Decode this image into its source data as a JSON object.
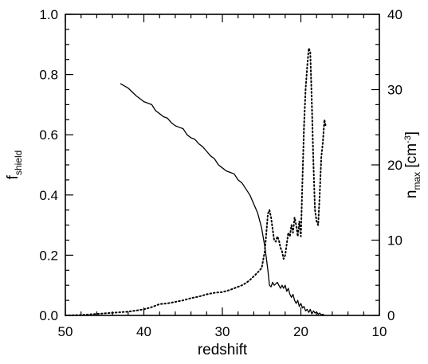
{
  "chart_data": {
    "type": "line",
    "title": "",
    "xlabel": "redshift",
    "ylabel_left": {
      "main": "f",
      "sub": "shield"
    },
    "ylabel_right": {
      "main": "n",
      "sub": "max",
      "unit_open": " [cm",
      "unit_sup": "-3",
      "unit_close": "]"
    },
    "xlim": [
      50,
      10
    ],
    "ylim_left": [
      0.0,
      1.0
    ],
    "ylim_right": [
      0,
      40
    ],
    "x_ticks": [
      50,
      40,
      30,
      20,
      10
    ],
    "x_tick_labels": [
      "50",
      "40",
      "30",
      "20",
      "10"
    ],
    "y_left_ticks": [
      0.0,
      0.2,
      0.4,
      0.6,
      0.8,
      1.0
    ],
    "y_left_tick_labels": [
      "0.0",
      "0.2",
      "0.4",
      "0.6",
      "0.8",
      "1.0"
    ],
    "y_right_ticks": [
      0,
      10,
      20,
      30,
      40
    ],
    "y_right_tick_labels": [
      "0",
      "10",
      "20",
      "30",
      "40"
    ],
    "grid": false,
    "legend": "none",
    "colors": {
      "line": "#000000"
    },
    "series": [
      {
        "axis": "left",
        "style": "solid",
        "x": [
          43.0,
          42.0,
          41.0,
          40.0,
          39.0,
          38.5,
          38.0,
          37.5,
          37.0,
          36.5,
          36.0,
          35.5,
          35.0,
          34.5,
          34.0,
          33.5,
          33.0,
          32.5,
          32.0,
          31.5,
          31.0,
          30.5,
          30.0,
          29.5,
          29.0,
          28.5,
          28.0,
          27.5,
          27.0,
          26.5,
          26.0,
          25.5,
          25.0,
          24.8,
          24.6,
          24.4,
          24.2,
          24.0,
          23.8,
          23.6,
          23.4,
          23.2,
          23.0,
          22.8,
          22.6,
          22.4,
          22.2,
          22.0,
          21.8,
          21.6,
          21.4,
          21.2,
          21.0,
          20.8,
          20.6,
          20.4,
          20.2,
          20.0,
          19.8,
          19.6,
          19.4,
          19.2,
          19.0,
          18.8,
          18.6,
          18.4,
          18.2,
          18.0,
          17.8,
          17.6,
          17.4,
          17.2,
          17.0
        ],
        "y": [
          0.77,
          0.755,
          0.73,
          0.71,
          0.7,
          0.68,
          0.67,
          0.66,
          0.655,
          0.64,
          0.63,
          0.625,
          0.62,
          0.6,
          0.59,
          0.585,
          0.57,
          0.56,
          0.545,
          0.53,
          0.52,
          0.5,
          0.49,
          0.48,
          0.475,
          0.47,
          0.45,
          0.44,
          0.42,
          0.4,
          0.37,
          0.34,
          0.29,
          0.26,
          0.23,
          0.19,
          0.15,
          0.1,
          0.095,
          0.11,
          0.1,
          0.105,
          0.11,
          0.1,
          0.09,
          0.1,
          0.09,
          0.1,
          0.08,
          0.09,
          0.07,
          0.06,
          0.07,
          0.05,
          0.04,
          0.05,
          0.03,
          0.04,
          0.025,
          0.03,
          0.015,
          0.02,
          0.01,
          0.02,
          0.005,
          0.015,
          0.008,
          0.012,
          0.004,
          0.008,
          0.002,
          0.004,
          0.0
        ]
      },
      {
        "axis": "right",
        "style": "dotted",
        "x": [
          50.0,
          48.0,
          46.0,
          44.0,
          42.0,
          40.0,
          39.0,
          38.0,
          37.0,
          36.0,
          35.0,
          34.0,
          33.0,
          32.0,
          31.0,
          30.0,
          29.0,
          28.0,
          27.5,
          27.0,
          26.5,
          26.0,
          25.5,
          25.0,
          24.6,
          24.4,
          24.2,
          24.0,
          23.8,
          23.6,
          23.4,
          23.2,
          23.0,
          22.8,
          22.6,
          22.4,
          22.2,
          22.0,
          21.8,
          21.6,
          21.4,
          21.2,
          21.0,
          20.8,
          20.6,
          20.4,
          20.2,
          20.0,
          19.8,
          19.6,
          19.4,
          19.2,
          19.0,
          18.8,
          18.6,
          18.4,
          18.2,
          18.0,
          17.8,
          17.6,
          17.4,
          17.2,
          17.0,
          16.8
        ],
        "y": [
          0.0,
          0.05,
          0.2,
          0.35,
          0.5,
          0.8,
          1.1,
          1.5,
          1.6,
          1.8,
          2.0,
          2.3,
          2.5,
          2.8,
          3.0,
          3.1,
          3.4,
          3.8,
          4.0,
          4.3,
          4.7,
          5.2,
          5.7,
          6.3,
          8.5,
          11.0,
          13.5,
          14.0,
          13.0,
          11.5,
          10.0,
          9.8,
          10.5,
          10.0,
          9.0,
          8.5,
          7.5,
          8.0,
          9.5,
          11.0,
          10.5,
          12.0,
          11.0,
          13.0,
          12.0,
          10.5,
          12.5,
          10.5,
          18.0,
          25.0,
          30.0,
          33.0,
          35.5,
          35.0,
          28.0,
          20.0,
          14.0,
          12.5,
          12.0,
          16.0,
          21.0,
          23.0,
          26.0,
          25.0
        ]
      }
    ]
  }
}
